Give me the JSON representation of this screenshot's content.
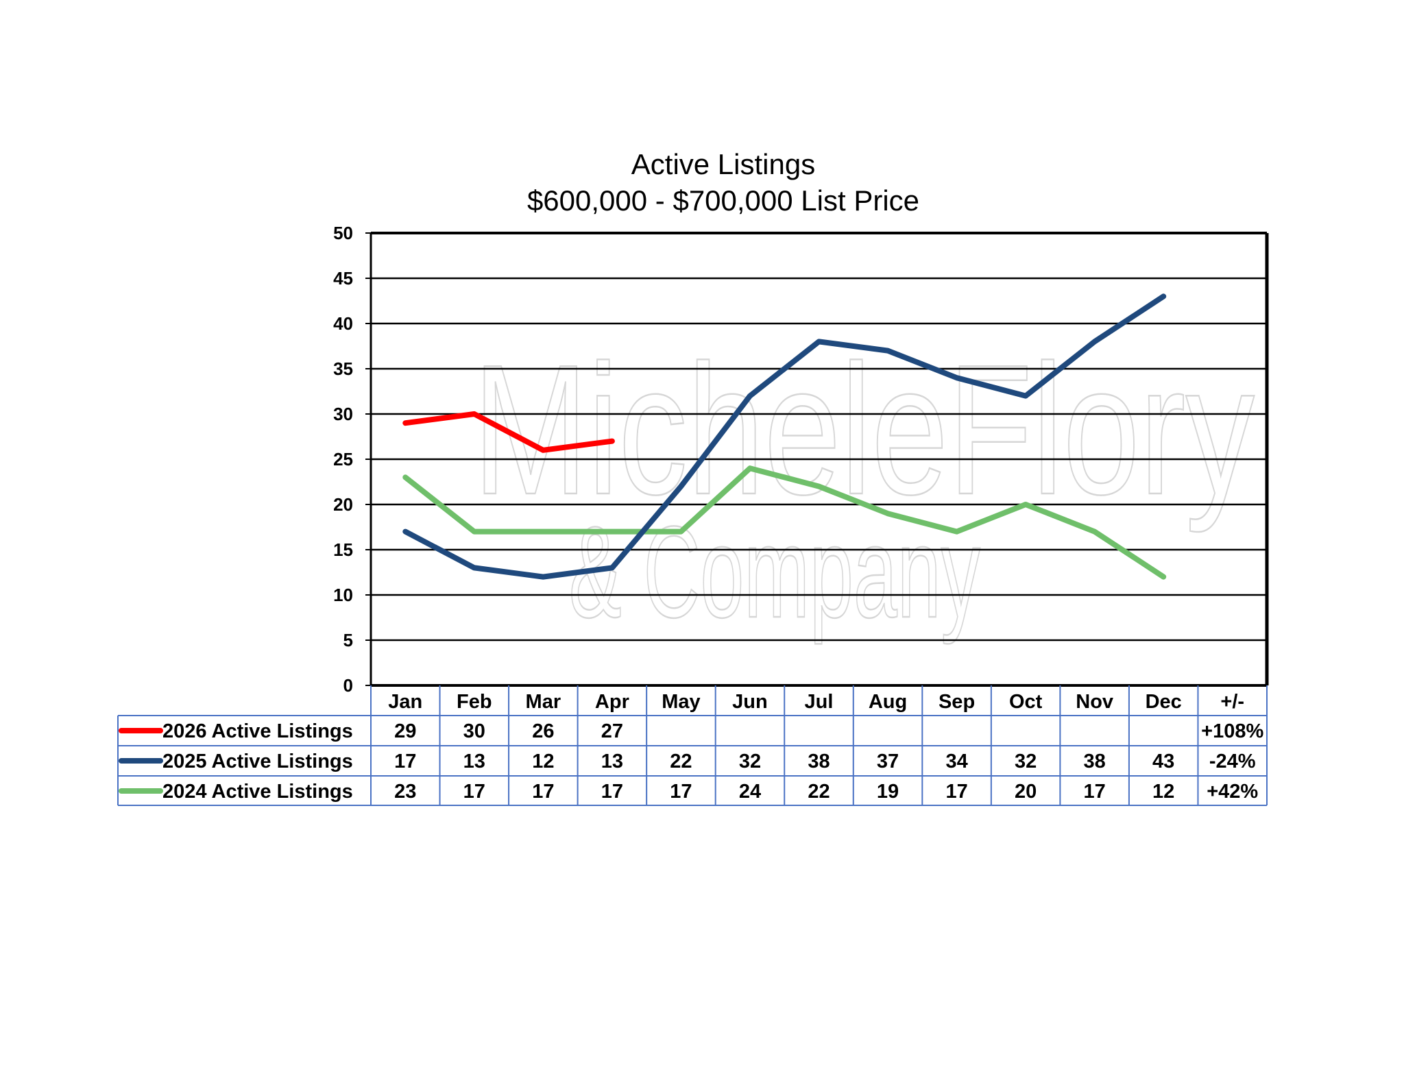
{
  "chart_data": {
    "type": "line",
    "title": "Active Listings",
    "subtitle": "$600,000 - $700,000 List Price",
    "categories": [
      "Jan",
      "Feb",
      "Mar",
      "Apr",
      "May",
      "Jun",
      "Jul",
      "Aug",
      "Sep",
      "Oct",
      "Nov",
      "Dec"
    ],
    "change_header": "+/-",
    "ylim": [
      0,
      50
    ],
    "ytick_step": 5,
    "grid": true,
    "legend_placement": "data-table-left",
    "series": [
      {
        "name": "2026 Active Listings",
        "color": "#ff0000",
        "values": [
          29,
          30,
          26,
          27,
          null,
          null,
          null,
          null,
          null,
          null,
          null,
          null
        ],
        "change": "+108%"
      },
      {
        "name": "2025 Active Listings",
        "color": "#1f497d",
        "values": [
          17,
          13,
          12,
          13,
          22,
          32,
          38,
          37,
          34,
          32,
          38,
          43
        ],
        "change": "-24%"
      },
      {
        "name": "2024 Active Listings",
        "color": "#6fbf6a",
        "values": [
          23,
          17,
          17,
          17,
          17,
          24,
          22,
          19,
          17,
          20,
          17,
          12
        ],
        "change": "+42%"
      }
    ],
    "watermark": {
      "line1": "MicheleFlory",
      "line2": "& Company"
    }
  }
}
